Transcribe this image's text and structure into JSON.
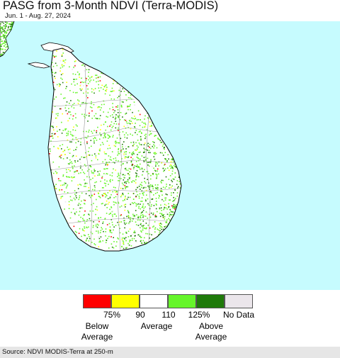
{
  "header": {
    "title": "PASG from 3-Month NDVI (Terra-MODIS)",
    "date_range": "Jun. 1 - Aug. 27, 2024"
  },
  "map": {
    "water_color": "#c6fbfe",
    "land_base_color": "#ffffff",
    "boundary_color": "#000000",
    "district_line_color": "#999999",
    "scatter_colors": [
      "#66f52a",
      "#66f52a",
      "#1f7a0a",
      "#ffff00",
      "#ff0000",
      "#ebe6eb"
    ]
  },
  "legend": {
    "swatches": [
      {
        "color": "#ff0000",
        "meaning": "below 75%"
      },
      {
        "color": "#ffff00",
        "meaning": "75-90"
      },
      {
        "color": "#ffffff",
        "meaning": "90-110"
      },
      {
        "color": "#66f52a",
        "meaning": "110-125%"
      },
      {
        "color": "#1f7a0a",
        "meaning": "above 125%"
      },
      {
        "color": "#ebe6eb",
        "meaning": "no data"
      }
    ],
    "ticks": [
      "75%",
      "90",
      "110",
      "125%",
      "No Data"
    ],
    "below_label": "Below\nAverage",
    "average_label": "Average",
    "above_label": "Above\nAverage"
  },
  "footer": {
    "source": "Source: NDVI MODIS-Terra at 250-m"
  }
}
